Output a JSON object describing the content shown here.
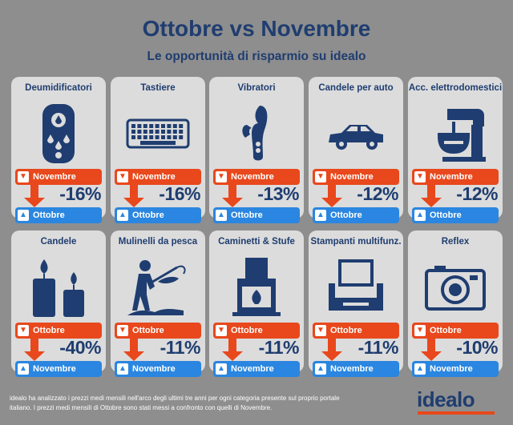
{
  "header": {
    "title": "Ottobre vs Novembre",
    "subtitle": "Le opportunità di risparmio su idealo"
  },
  "colors": {
    "navy": "#1f3d70",
    "orange": "#e8481c",
    "blue": "#2a86e0",
    "card": "#dcdcdc",
    "background": "#8e8e8e"
  },
  "row1": {
    "top_label": "Novembre",
    "bottom_label": "Ottobre",
    "top_icon": "thumbs-down-icon",
    "bottom_icon": "thumbs-up-icon",
    "cards": [
      {
        "name": "Deumidificatori",
        "pct": "-16%",
        "icon": "dehumidifier-icon"
      },
      {
        "name": "Tastiere",
        "pct": "-16%",
        "icon": "keyboard-icon"
      },
      {
        "name": "Vibratori",
        "pct": "-13%",
        "icon": "vibrator-icon"
      },
      {
        "name": "Candele per auto",
        "pct": "-12%",
        "icon": "car-icon"
      },
      {
        "name": "Acc. elettrodomestici",
        "pct": "-12%",
        "icon": "stand-mixer-icon"
      }
    ]
  },
  "row2": {
    "top_label": "Ottobre",
    "bottom_label": "Novembre",
    "top_icon": "thumbs-down-icon",
    "bottom_icon": "thumbs-up-icon",
    "cards": [
      {
        "name": "Candele",
        "pct": "-40%",
        "icon": "candles-icon"
      },
      {
        "name": "Mulinelli da pesca",
        "pct": "-11%",
        "icon": "fisherman-icon"
      },
      {
        "name": "Caminetti & Stufe",
        "pct": "-11%",
        "icon": "fireplace-icon"
      },
      {
        "name": "Stampanti multifunz.",
        "pct": "-11%",
        "icon": "printer-icon"
      },
      {
        "name": "Reflex",
        "pct": "-10%",
        "icon": "camera-icon"
      }
    ]
  },
  "footer": {
    "note": "idealo ha analizzato i prezzi medi mensili nell'arco degli ultimi tre anni per ogni categoria presente sul proprio portale italiano. I prezzi medi mensili di Ottobre sono stati messi a confronto con quelli di Novembre.",
    "logo": "idealo"
  }
}
